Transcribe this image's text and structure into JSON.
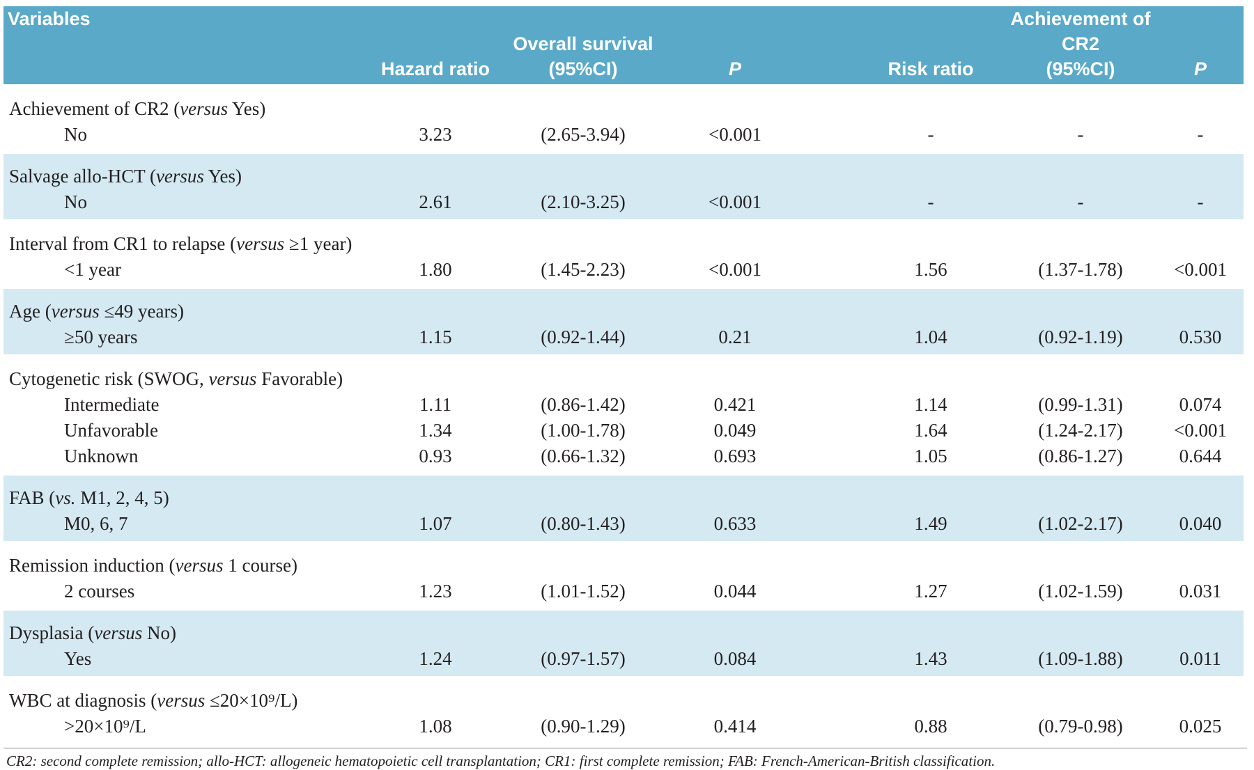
{
  "header": {
    "variables": "Variables",
    "group1": "Overall survival",
    "group2": "Achievement of CR2",
    "columns": [
      "Hazard ratio",
      "(95%CI)",
      "P",
      "Risk ratio",
      "(95%CI)",
      "P"
    ]
  },
  "groups": [
    {
      "label": [
        "Achievement of CR2 (",
        "versus",
        " Yes)"
      ],
      "rows": [
        [
          "No",
          "3.23",
          "(2.65-3.94)",
          "<0.001",
          "-",
          "-",
          "-"
        ]
      ]
    },
    {
      "label": [
        "Salvage allo-HCT (",
        "versus",
        " Yes)"
      ],
      "rows": [
        [
          "No",
          "2.61",
          "(2.10-3.25)",
          "<0.001",
          "-",
          "-",
          "-"
        ]
      ]
    },
    {
      "label": [
        "Interval from CR1 to relapse (",
        "versus",
        " ≥1 year)"
      ],
      "rows": [
        [
          "<1 year",
          "1.80",
          "(1.45-2.23)",
          "<0.001",
          "1.56",
          "(1.37-1.78)",
          "<0.001"
        ]
      ]
    },
    {
      "label": [
        "Age (",
        "versus",
        " ≤49 years)"
      ],
      "rows": [
        [
          "≥50 years",
          "1.15",
          "(0.92-1.44)",
          "0.21",
          "1.04",
          "(0.92-1.19)",
          "0.530"
        ]
      ]
    },
    {
      "label": [
        "Cytogenetic risk (SWOG, ",
        "versus",
        " Favorable)"
      ],
      "rows": [
        [
          "Intermediate",
          "1.11",
          "(0.86-1.42)",
          "0.421",
          "1.14",
          "(0.99-1.31)",
          "0.074"
        ],
        [
          "Unfavorable",
          "1.34",
          "(1.00-1.78)",
          "0.049",
          "1.64",
          "(1.24-2.17)",
          "<0.001"
        ],
        [
          "Unknown",
          "0.93",
          "(0.66-1.32)",
          "0.693",
          "1.05",
          "(0.86-1.27)",
          "0.644"
        ]
      ]
    },
    {
      "label": [
        "FAB (",
        "vs.",
        " M1, 2, 4, 5)"
      ],
      "rows": [
        [
          "M0, 6, 7",
          "1.07",
          "(0.80-1.43)",
          "0.633",
          "1.49",
          "(1.02-2.17)",
          "0.040"
        ]
      ]
    },
    {
      "label": [
        "Remission induction (",
        "versus",
        " 1 course)"
      ],
      "rows": [
        [
          "2 courses",
          "1.23",
          "(1.01-1.52)",
          "0.044",
          "1.27",
          "(1.02-1.59)",
          "0.031"
        ]
      ]
    },
    {
      "label": [
        "Dysplasia (",
        "versus",
        " No)"
      ],
      "rows": [
        [
          "Yes",
          "1.24",
          "(0.97-1.57)",
          "0.084",
          "1.43",
          "(1.09-1.88)",
          "0.011"
        ]
      ]
    },
    {
      "label": [
        "WBC at diagnosis (",
        "versus",
        " ≤20×10⁹/L)"
      ],
      "rows": [
        [
          ">20×10⁹/L",
          "1.08",
          "(0.90-1.29)",
          "0.414",
          "0.88",
          "(0.79-0.98)",
          "0.025"
        ]
      ]
    }
  ],
  "footnote": "CR2: second complete remission; allo-HCT: allogeneic hematopoietic cell transplantation; CR1: first complete remission; FAB: French-American-British classification."
}
